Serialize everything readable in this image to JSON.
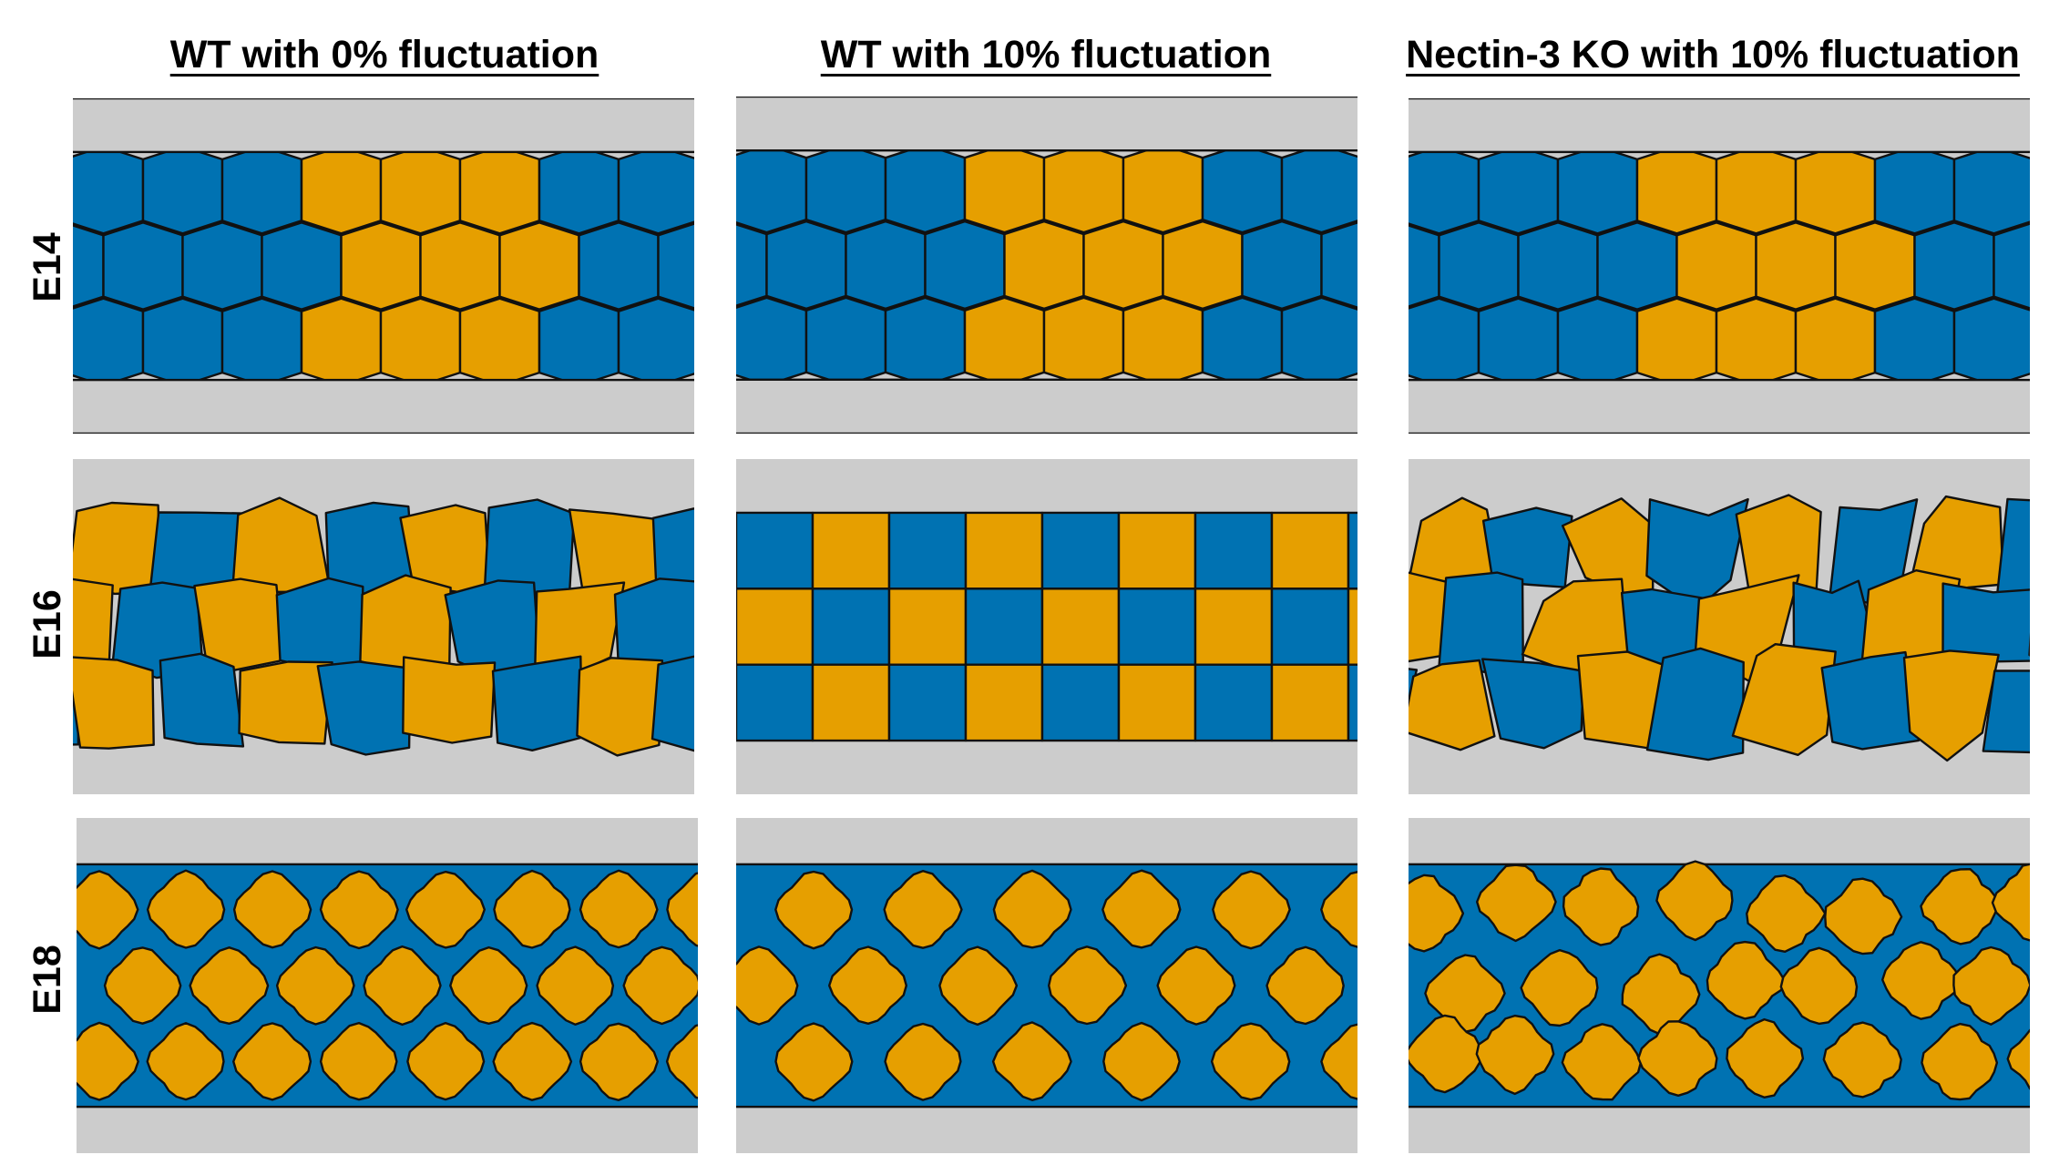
{
  "columns": [
    {
      "title": "WT with 0% fluctuation"
    },
    {
      "title": "WT with 10% fluctuation"
    },
    {
      "title": "Nectin-3 KO with 10% fluctuation"
    }
  ],
  "rows": [
    {
      "label": "E14"
    },
    {
      "label": "E16"
    },
    {
      "label": "E18"
    }
  ],
  "colors": {
    "blue": "#0072b2",
    "orange": "#e69f00",
    "background": "#cccccc",
    "edge": "#111111"
  }
}
